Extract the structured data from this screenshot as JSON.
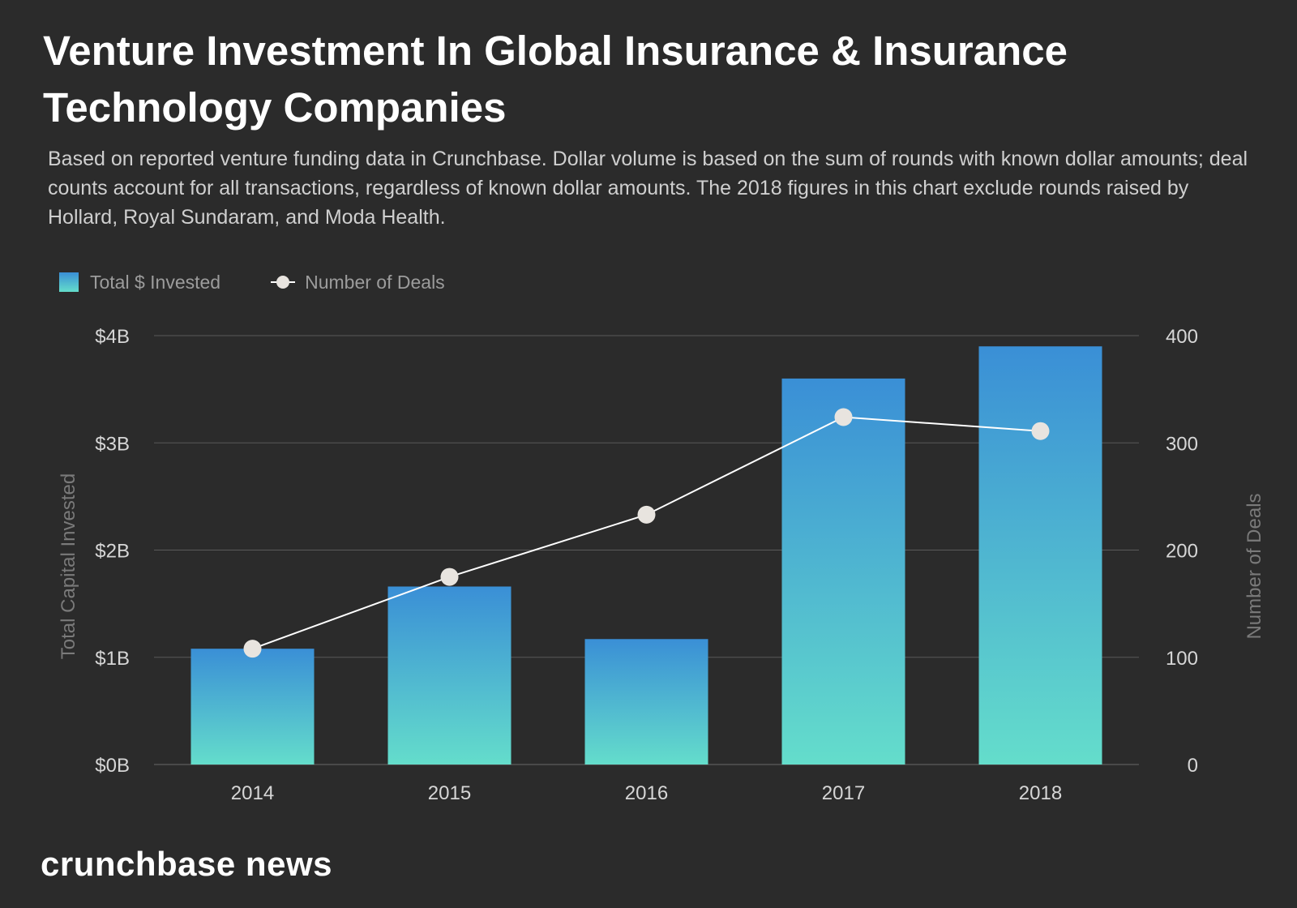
{
  "header": {
    "title": "Venture Investment In Global Insurance & Insurance Technology Companies",
    "subtitle": "Based on reported venture funding data in Crunchbase. Dollar volume is based on the sum of rounds with known dollar amounts; deal counts account for all transactions, regardless of known dollar amounts. The 2018 figures in this chart exclude rounds raised by Hollard, Royal Sundaram, and Moda Health."
  },
  "legend": {
    "bars_label": "Total $ Invested",
    "line_label": "Number of Deals"
  },
  "footer": {
    "brand": "crunchbase news"
  },
  "colors": {
    "background": "#2b2b2b",
    "bar_top": "#3a8fd6",
    "bar_bottom": "#64ddcb",
    "line": "#ffffff",
    "marker": "#e8e4df",
    "grid": "#5a5a5a"
  },
  "chart_data": {
    "type": "bar",
    "categories": [
      "2014",
      "2015",
      "2016",
      "2017",
      "2018"
    ],
    "series": [
      {
        "name": "Total $ Invested",
        "type": "bar",
        "axis": "left",
        "unit": "billion USD",
        "values": [
          1.08,
          1.66,
          1.17,
          3.6,
          3.9
        ]
      },
      {
        "name": "Number of Deals",
        "type": "line",
        "axis": "right",
        "values": [
          108,
          175,
          233,
          324,
          311
        ]
      }
    ],
    "ylabel": "Total Capital Invested",
    "ylabel_right": "Number of Deals",
    "ylim": [
      0,
      4
    ],
    "ylim_right": [
      0,
      400
    ],
    "yticks": [
      0,
      1,
      2,
      3,
      4
    ],
    "ytick_labels": [
      "$0B",
      "$1B",
      "$2B",
      "$3B",
      "$4B"
    ],
    "yticks_right": [
      0,
      100,
      200,
      300,
      400
    ],
    "ytick_labels_right": [
      "0",
      "100",
      "200",
      "300",
      "400"
    ],
    "grid": true,
    "legend_position": "top-left"
  }
}
